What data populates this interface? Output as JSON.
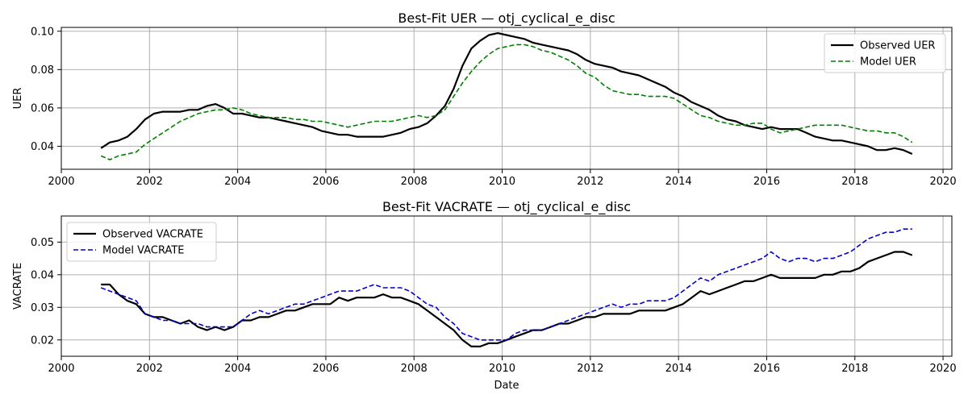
{
  "chart_data": [
    {
      "type": "line",
      "title": "Best-Fit UER — otj_cyclical_e_disc",
      "xlabel": "",
      "ylabel": "UER",
      "xlim": [
        2000,
        2020.2
      ],
      "ylim": [
        0.028,
        0.102
      ],
      "xticks": [
        2000,
        2002,
        2004,
        2006,
        2008,
        2010,
        2012,
        2014,
        2016,
        2018,
        2020
      ],
      "xtick_labels": [
        "2000",
        "2002",
        "2004",
        "2006",
        "2008",
        "2010",
        "2012",
        "2014",
        "2016",
        "2018",
        "2020"
      ],
      "yticks": [
        0.04,
        0.06,
        0.08,
        0.1
      ],
      "ytick_labels": [
        "0.04",
        "0.06",
        "0.08",
        "0.10"
      ],
      "grid": true,
      "legend": "top-right",
      "series": [
        {
          "name": "Observed UER",
          "color": "#000000",
          "style": "solid",
          "x": [
            2000.9,
            2001.1,
            2001.3,
            2001.5,
            2001.7,
            2001.9,
            2002.1,
            2002.3,
            2002.5,
            2002.7,
            2002.9,
            2003.1,
            2003.3,
            2003.5,
            2003.7,
            2003.9,
            2004.1,
            2004.3,
            2004.5,
            2004.7,
            2004.9,
            2005.1,
            2005.3,
            2005.5,
            2005.7,
            2005.9,
            2006.1,
            2006.3,
            2006.5,
            2006.7,
            2006.9,
            2007.1,
            2007.3,
            2007.5,
            2007.7,
            2007.9,
            2008.1,
            2008.3,
            2008.5,
            2008.7,
            2008.9,
            2009.1,
            2009.3,
            2009.5,
            2009.7,
            2009.9,
            2010.1,
            2010.3,
            2010.5,
            2010.7,
            2010.9,
            2011.1,
            2011.3,
            2011.5,
            2011.7,
            2011.9,
            2012.1,
            2012.3,
            2012.5,
            2012.7,
            2012.9,
            2013.1,
            2013.3,
            2013.5,
            2013.7,
            2013.9,
            2014.1,
            2014.3,
            2014.5,
            2014.7,
            2014.9,
            2015.1,
            2015.3,
            2015.5,
            2015.7,
            2015.9,
            2016.1,
            2016.3,
            2016.5,
            2016.7,
            2016.9,
            2017.1,
            2017.3,
            2017.5,
            2017.7,
            2017.9,
            2018.1,
            2018.3,
            2018.5,
            2018.7,
            2018.9,
            2019.1,
            2019.3
          ],
          "values": [
            0.039,
            0.042,
            0.043,
            0.045,
            0.049,
            0.054,
            0.057,
            0.058,
            0.058,
            0.058,
            0.059,
            0.059,
            0.061,
            0.062,
            0.06,
            0.057,
            0.057,
            0.056,
            0.055,
            0.055,
            0.054,
            0.053,
            0.052,
            0.051,
            0.05,
            0.048,
            0.047,
            0.046,
            0.046,
            0.045,
            0.045,
            0.045,
            0.045,
            0.046,
            0.047,
            0.049,
            0.05,
            0.052,
            0.056,
            0.061,
            0.07,
            0.082,
            0.091,
            0.095,
            0.098,
            0.099,
            0.098,
            0.097,
            0.096,
            0.094,
            0.093,
            0.092,
            0.091,
            0.09,
            0.088,
            0.085,
            0.083,
            0.082,
            0.081,
            0.079,
            0.078,
            0.077,
            0.075,
            0.073,
            0.071,
            0.068,
            0.066,
            0.063,
            0.061,
            0.059,
            0.056,
            0.054,
            0.053,
            0.051,
            0.05,
            0.049,
            0.05,
            0.049,
            0.049,
            0.049,
            0.047,
            0.045,
            0.044,
            0.043,
            0.043,
            0.042,
            0.041,
            0.04,
            0.038,
            0.038,
            0.039,
            0.038,
            0.036
          ]
        },
        {
          "name": "Model UER",
          "color": "#008000",
          "style": "dashed",
          "x": [
            2000.9,
            2001.1,
            2001.3,
            2001.5,
            2001.7,
            2001.9,
            2002.1,
            2002.3,
            2002.5,
            2002.7,
            2002.9,
            2003.1,
            2003.3,
            2003.5,
            2003.7,
            2003.9,
            2004.1,
            2004.3,
            2004.5,
            2004.7,
            2004.9,
            2005.1,
            2005.3,
            2005.5,
            2005.7,
            2005.9,
            2006.1,
            2006.3,
            2006.5,
            2006.7,
            2006.9,
            2007.1,
            2007.3,
            2007.5,
            2007.7,
            2007.9,
            2008.1,
            2008.3,
            2008.5,
            2008.7,
            2008.9,
            2009.1,
            2009.3,
            2009.5,
            2009.7,
            2009.9,
            2010.1,
            2010.3,
            2010.5,
            2010.7,
            2010.9,
            2011.1,
            2011.3,
            2011.5,
            2011.7,
            2011.9,
            2012.1,
            2012.3,
            2012.5,
            2012.7,
            2012.9,
            2013.1,
            2013.3,
            2013.5,
            2013.7,
            2013.9,
            2014.1,
            2014.3,
            2014.5,
            2014.7,
            2014.9,
            2015.1,
            2015.3,
            2015.5,
            2015.7,
            2015.9,
            2016.1,
            2016.3,
            2016.5,
            2016.7,
            2016.9,
            2017.1,
            2017.3,
            2017.5,
            2017.7,
            2017.9,
            2018.1,
            2018.3,
            2018.5,
            2018.7,
            2018.9,
            2019.1,
            2019.3
          ],
          "values": [
            0.035,
            0.033,
            0.035,
            0.036,
            0.037,
            0.041,
            0.044,
            0.047,
            0.05,
            0.053,
            0.055,
            0.057,
            0.058,
            0.059,
            0.059,
            0.06,
            0.059,
            0.057,
            0.056,
            0.055,
            0.055,
            0.055,
            0.054,
            0.054,
            0.053,
            0.053,
            0.052,
            0.051,
            0.05,
            0.051,
            0.052,
            0.053,
            0.053,
            0.053,
            0.054,
            0.055,
            0.056,
            0.055,
            0.056,
            0.059,
            0.066,
            0.073,
            0.079,
            0.084,
            0.088,
            0.091,
            0.092,
            0.093,
            0.093,
            0.092,
            0.09,
            0.089,
            0.087,
            0.085,
            0.082,
            0.078,
            0.076,
            0.072,
            0.069,
            0.068,
            0.067,
            0.067,
            0.066,
            0.066,
            0.066,
            0.065,
            0.062,
            0.059,
            0.056,
            0.055,
            0.053,
            0.052,
            0.051,
            0.051,
            0.052,
            0.052,
            0.049,
            0.047,
            0.048,
            0.049,
            0.05,
            0.051,
            0.051,
            0.051,
            0.051,
            0.05,
            0.049,
            0.048,
            0.048,
            0.047,
            0.047,
            0.045,
            0.042
          ]
        }
      ]
    },
    {
      "type": "line",
      "title": "Best-Fit VACRATE — otj_cyclical_e_disc",
      "xlabel": "Date",
      "ylabel": "VACRATE",
      "xlim": [
        2000,
        2020.2
      ],
      "ylim": [
        0.015,
        0.058
      ],
      "xticks": [
        2000,
        2002,
        2004,
        2006,
        2008,
        2010,
        2012,
        2014,
        2016,
        2018,
        2020
      ],
      "xtick_labels": [
        "2000",
        "2002",
        "2004",
        "2006",
        "2008",
        "2010",
        "2012",
        "2014",
        "2016",
        "2018",
        "2020"
      ],
      "yticks": [
        0.02,
        0.03,
        0.04,
        0.05
      ],
      "ytick_labels": [
        "0.02",
        "0.03",
        "0.04",
        "0.05"
      ],
      "grid": true,
      "legend": "top-left",
      "series": [
        {
          "name": "Observed VACRATE",
          "color": "#000000",
          "style": "solid",
          "x": [
            2000.9,
            2001.1,
            2001.3,
            2001.5,
            2001.7,
            2001.9,
            2002.1,
            2002.3,
            2002.5,
            2002.7,
            2002.9,
            2003.1,
            2003.3,
            2003.5,
            2003.7,
            2003.9,
            2004.1,
            2004.3,
            2004.5,
            2004.7,
            2004.9,
            2005.1,
            2005.3,
            2005.5,
            2005.7,
            2005.9,
            2006.1,
            2006.3,
            2006.5,
            2006.7,
            2006.9,
            2007.1,
            2007.3,
            2007.5,
            2007.7,
            2007.9,
            2008.1,
            2008.3,
            2008.5,
            2008.7,
            2008.9,
            2009.1,
            2009.3,
            2009.5,
            2009.7,
            2009.9,
            2010.1,
            2010.3,
            2010.5,
            2010.7,
            2010.9,
            2011.1,
            2011.3,
            2011.5,
            2011.7,
            2011.9,
            2012.1,
            2012.3,
            2012.5,
            2012.7,
            2012.9,
            2013.1,
            2013.3,
            2013.5,
            2013.7,
            2013.9,
            2014.1,
            2014.3,
            2014.5,
            2014.7,
            2014.9,
            2015.1,
            2015.3,
            2015.5,
            2015.7,
            2015.9,
            2016.1,
            2016.3,
            2016.5,
            2016.7,
            2016.9,
            2017.1,
            2017.3,
            2017.5,
            2017.7,
            2017.9,
            2018.1,
            2018.3,
            2018.5,
            2018.7,
            2018.9,
            2019.1,
            2019.3
          ],
          "values": [
            0.037,
            0.037,
            0.034,
            0.032,
            0.031,
            0.028,
            0.027,
            0.027,
            0.026,
            0.025,
            0.026,
            0.024,
            0.023,
            0.024,
            0.023,
            0.024,
            0.026,
            0.026,
            0.027,
            0.027,
            0.028,
            0.029,
            0.029,
            0.03,
            0.031,
            0.031,
            0.031,
            0.033,
            0.032,
            0.033,
            0.033,
            0.033,
            0.034,
            0.033,
            0.033,
            0.032,
            0.031,
            0.029,
            0.027,
            0.025,
            0.023,
            0.02,
            0.018,
            0.018,
            0.019,
            0.019,
            0.02,
            0.021,
            0.022,
            0.023,
            0.023,
            0.024,
            0.025,
            0.025,
            0.026,
            0.027,
            0.027,
            0.028,
            0.028,
            0.028,
            0.028,
            0.029,
            0.029,
            0.029,
            0.029,
            0.03,
            0.031,
            0.033,
            0.035,
            0.034,
            0.035,
            0.036,
            0.037,
            0.038,
            0.038,
            0.039,
            0.04,
            0.039,
            0.039,
            0.039,
            0.039,
            0.039,
            0.04,
            0.04,
            0.041,
            0.041,
            0.042,
            0.044,
            0.045,
            0.046,
            0.047,
            0.047,
            0.046
          ]
        },
        {
          "name": "Model VACRATE",
          "color": "#0000cc",
          "style": "dashed",
          "x": [
            2000.9,
            2001.1,
            2001.3,
            2001.5,
            2001.7,
            2001.9,
            2002.1,
            2002.3,
            2002.5,
            2002.7,
            2002.9,
            2003.1,
            2003.3,
            2003.5,
            2003.7,
            2003.9,
            2004.1,
            2004.3,
            2004.5,
            2004.7,
            2004.9,
            2005.1,
            2005.3,
            2005.5,
            2005.7,
            2005.9,
            2006.1,
            2006.3,
            2006.5,
            2006.7,
            2006.9,
            2007.1,
            2007.3,
            2007.5,
            2007.7,
            2007.9,
            2008.1,
            2008.3,
            2008.5,
            2008.7,
            2008.9,
            2009.1,
            2009.3,
            2009.5,
            2009.7,
            2009.9,
            2010.1,
            2010.3,
            2010.5,
            2010.7,
            2010.9,
            2011.1,
            2011.3,
            2011.5,
            2011.7,
            2011.9,
            2012.1,
            2012.3,
            2012.5,
            2012.7,
            2012.9,
            2013.1,
            2013.3,
            2013.5,
            2013.7,
            2013.9,
            2014.1,
            2014.3,
            2014.5,
            2014.7,
            2014.9,
            2015.1,
            2015.3,
            2015.5,
            2015.7,
            2015.9,
            2016.1,
            2016.3,
            2016.5,
            2016.7,
            2016.9,
            2017.1,
            2017.3,
            2017.5,
            2017.7,
            2017.9,
            2018.1,
            2018.3,
            2018.5,
            2018.7,
            2018.9,
            2019.1,
            2019.3
          ],
          "values": [
            0.036,
            0.035,
            0.034,
            0.033,
            0.032,
            0.028,
            0.027,
            0.026,
            0.026,
            0.025,
            0.025,
            0.025,
            0.024,
            0.024,
            0.024,
            0.024,
            0.026,
            0.028,
            0.029,
            0.028,
            0.029,
            0.03,
            0.031,
            0.031,
            0.032,
            0.033,
            0.034,
            0.035,
            0.035,
            0.035,
            0.036,
            0.037,
            0.036,
            0.036,
            0.036,
            0.035,
            0.033,
            0.031,
            0.03,
            0.027,
            0.025,
            0.022,
            0.021,
            0.02,
            0.02,
            0.02,
            0.02,
            0.022,
            0.023,
            0.023,
            0.023,
            0.024,
            0.025,
            0.026,
            0.027,
            0.028,
            0.029,
            0.03,
            0.031,
            0.03,
            0.031,
            0.031,
            0.032,
            0.032,
            0.032,
            0.033,
            0.035,
            0.037,
            0.039,
            0.038,
            0.04,
            0.041,
            0.042,
            0.043,
            0.044,
            0.045,
            0.047,
            0.045,
            0.044,
            0.045,
            0.045,
            0.044,
            0.045,
            0.045,
            0.046,
            0.047,
            0.049,
            0.051,
            0.052,
            0.053,
            0.053,
            0.054,
            0.054
          ]
        }
      ]
    }
  ]
}
